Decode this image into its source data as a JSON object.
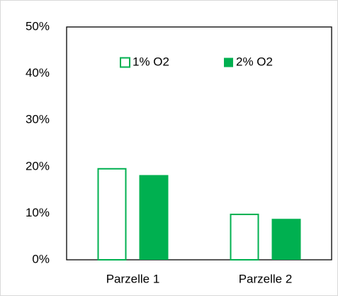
{
  "chart_data": {
    "type": "bar",
    "categories": [
      "Parzelle 1",
      "Parzelle 2"
    ],
    "series": [
      {
        "name": "1% O2",
        "color": "#00b050",
        "fill": "none",
        "values": [
          19.7,
          9.9
        ]
      },
      {
        "name": "2% O2",
        "color": "#00b050",
        "fill": "solid",
        "values": [
          18.2,
          8.8
        ]
      }
    ],
    "ylim": [
      0,
      50
    ],
    "yticks": [
      {
        "value": 0,
        "label": "0%"
      },
      {
        "value": 10,
        "label": "10%"
      },
      {
        "value": 20,
        "label": "20%"
      },
      {
        "value": 30,
        "label": "30%"
      },
      {
        "value": 40,
        "label": "40%"
      },
      {
        "value": 50,
        "label": "50%"
      }
    ],
    "grid": false,
    "legend": "top"
  }
}
